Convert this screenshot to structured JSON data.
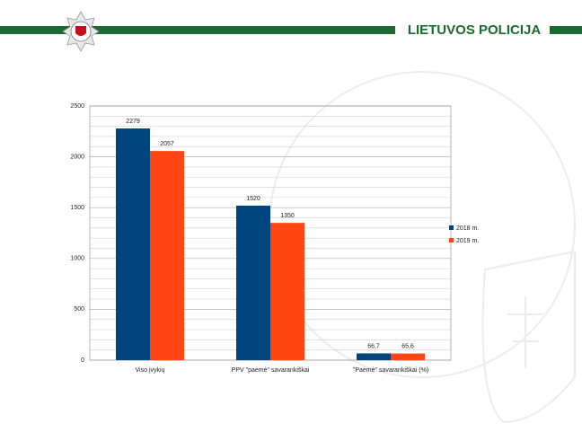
{
  "header": {
    "title": "LIETUVOS POLICIJA"
  },
  "chart_data": {
    "type": "bar",
    "categories": [
      "Viso įvykių",
      "PPV \"paėmė\" savarankiškai",
      "\"Paėmė\" savarankiškai (%)"
    ],
    "series": [
      {
        "name": "2018 m.",
        "color": "#00457e",
        "values": [
          2279,
          1520,
          66.7
        ],
        "value_labels": [
          "2279",
          "1520",
          "66,7"
        ]
      },
      {
        "name": "2019 m.",
        "color": "#ff4612",
        "values": [
          2057,
          1350,
          65.6
        ],
        "value_labels": [
          "2057",
          "1350",
          "65,6"
        ]
      }
    ],
    "ylim": [
      0,
      2500
    ],
    "yticks": [
      0,
      500,
      1000,
      1500,
      2000,
      2500
    ],
    "minor_yticks": [
      100,
      200,
      300,
      400,
      600,
      700,
      800,
      900,
      1100,
      1200,
      1300,
      1400,
      1600,
      1700,
      1800,
      1900,
      2100,
      2200,
      2300,
      2400
    ],
    "grid": true,
    "legend": "right"
  }
}
